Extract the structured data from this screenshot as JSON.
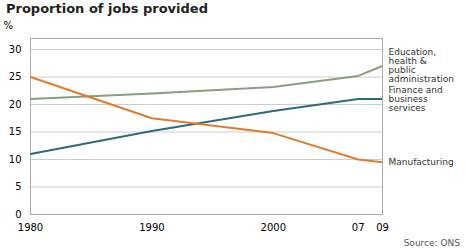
{
  "chart_data": {
    "type": "line",
    "title": "Proportion of jobs provided",
    "ylabel": "%",
    "source": "Source: ONS",
    "x": [
      1980,
      1990,
      2000,
      2007,
      2009
    ],
    "xlim": [
      1980,
      2009
    ],
    "xticks": [
      1980,
      1990,
      2000,
      {
        "value": 2007,
        "label": "07"
      },
      {
        "value": 2009,
        "label": "09"
      }
    ],
    "ylim": [
      0,
      32
    ],
    "yticks": [
      0,
      5,
      10,
      15,
      20,
      25,
      30
    ],
    "grid": true,
    "series": [
      {
        "color": "#8a9f7e",
        "values": [
          21.0,
          22.0,
          23.2,
          25.2,
          27.0
        ]
      },
      {
        "color": "#2e6b7a",
        "values": [
          11.0,
          15.2,
          18.8,
          21.0,
          21.0
        ]
      },
      {
        "color": "#e07b30",
        "values": [
          25.0,
          17.5,
          14.8,
          10.0,
          9.5
        ]
      }
    ],
    "annotations": [
      {
        "text": "Education,\nhealth &\npublic\nadministration",
        "y": 27.0
      },
      {
        "text": "Finance and\nbusiness\nservices",
        "y": 21.0
      },
      {
        "text": "Manufacturing",
        "y": 9.5
      }
    ]
  }
}
